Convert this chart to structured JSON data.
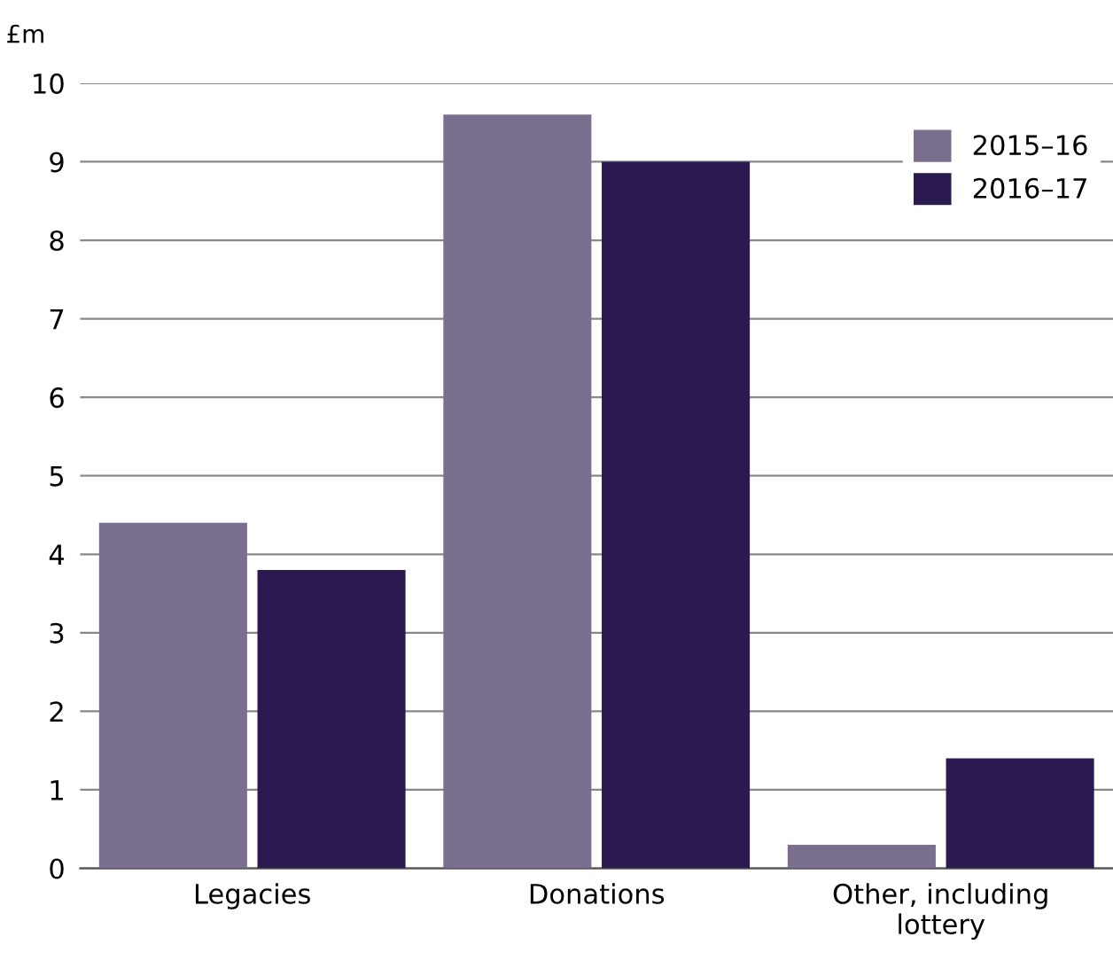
{
  "chart_data": {
    "type": "bar",
    "ylabel": "£m",
    "categories": [
      "Legacies",
      "Donations",
      "Other, including\nlottery"
    ],
    "series": [
      {
        "name": "2015–16",
        "color": "#7b6f90",
        "values": [
          4.4,
          9.6,
          0.3
        ]
      },
      {
        "name": "2016–17",
        "color": "#2a1a4f",
        "values": [
          3.8,
          9.0,
          1.4
        ]
      }
    ],
    "ylim": [
      0,
      10
    ],
    "yticks": [
      0,
      1,
      2,
      3,
      4,
      5,
      6,
      7,
      8,
      9,
      10
    ],
    "grid": "y",
    "legend": "top right"
  }
}
